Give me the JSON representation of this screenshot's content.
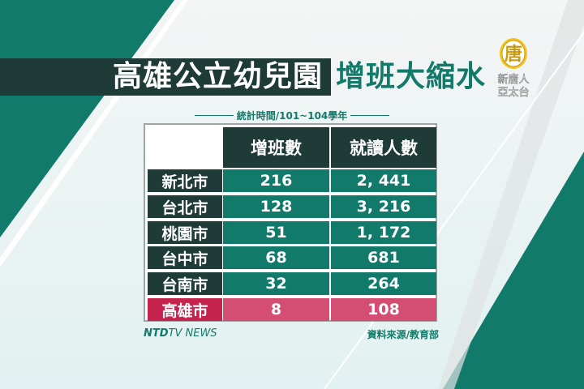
{
  "title": {
    "main": "高雄公立幼兒園",
    "accent": "增班大縮水"
  },
  "subtitle": "統計時間/101~104學年",
  "logo": {
    "glyph": "唐",
    "text": "新唐人亞太台"
  },
  "colors": {
    "teal": "#127a6b",
    "dark": "#1f3b37",
    "highlight": "#d44d72"
  },
  "chart_data": {
    "type": "table",
    "columns": [
      "增班數",
      "就讀人數"
    ],
    "rows": [
      {
        "city": "新北市",
        "classes_added": "216",
        "enrollment": "2, 441"
      },
      {
        "city": "台北市",
        "classes_added": "128",
        "enrollment": "3, 216"
      },
      {
        "city": "桃園市",
        "classes_added": "51",
        "enrollment": "1, 172"
      },
      {
        "city": "台中市",
        "classes_added": "68",
        "enrollment": "681"
      },
      {
        "city": "台南市",
        "classes_added": "32",
        "enrollment": "264"
      },
      {
        "city": "高雄市",
        "classes_added": "8",
        "enrollment": "108",
        "highlighted": true
      }
    ]
  },
  "footer": {
    "brand_bold": "NTD",
    "brand_rest": "TV NEWS",
    "source": "資料來源/教育部"
  }
}
